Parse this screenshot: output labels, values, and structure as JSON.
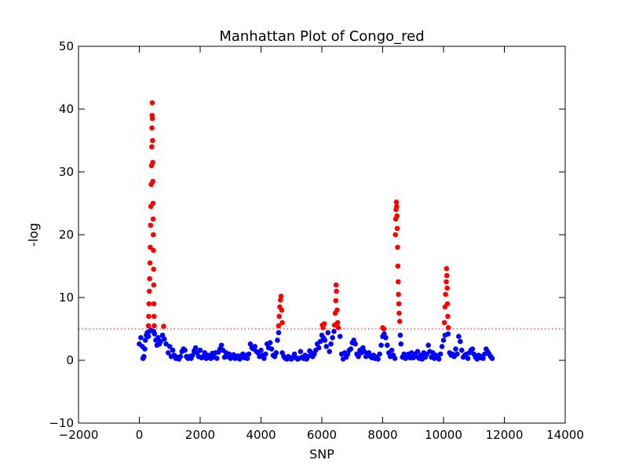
{
  "chart_data": {
    "type": "scatter",
    "title": "Manhattan Plot of Congo_red",
    "xlabel": "SNP",
    "ylabel": "-log",
    "xlim": [
      -2000,
      14000
    ],
    "ylim": [
      -10,
      50
    ],
    "xticks": [
      -2000,
      0,
      2000,
      4000,
      6000,
      8000,
      10000,
      12000,
      14000
    ],
    "yticks": [
      -10,
      0,
      10,
      20,
      30,
      40,
      50
    ],
    "xtick_labels": [
      "−2000",
      "0",
      "2000",
      "4000",
      "6000",
      "8000",
      "10000",
      "12000",
      "14000"
    ],
    "ytick_labels": [
      "−10",
      "0",
      "10",
      "20",
      "30",
      "40",
      "50"
    ],
    "threshold": 5,
    "colors": {
      "above_threshold": "#ff0000",
      "below_threshold": "#0000ff",
      "threshold_line": "#ff0000"
    },
    "series": [
      {
        "color": "#0000ff",
        "points": [
          [
            0,
            2.6
          ],
          [
            50,
            3.6
          ],
          [
            100,
            2.2
          ],
          [
            120,
            0.3
          ],
          [
            150,
            0.6
          ],
          [
            180,
            1.8
          ],
          [
            200,
            3.2
          ],
          [
            230,
            4.0
          ],
          [
            260,
            4.4
          ],
          [
            300,
            3.8
          ],
          [
            330,
            4.6
          ],
          [
            380,
            4.8
          ],
          [
            470,
            4.6
          ],
          [
            500,
            4.2
          ],
          [
            540,
            3.2
          ],
          [
            580,
            2.4
          ],
          [
            620,
            3.6
          ],
          [
            660,
            2.6
          ],
          [
            700,
            3.0
          ],
          [
            760,
            4.0
          ],
          [
            820,
            3.4
          ],
          [
            880,
            2.6
          ],
          [
            950,
            1.2
          ],
          [
            1000,
            2.2
          ],
          [
            1050,
            0.6
          ],
          [
            1100,
            1.6
          ],
          [
            1150,
            0.8
          ],
          [
            1200,
            0.3
          ],
          [
            1250,
            0.5
          ],
          [
            1300,
            0.2
          ],
          [
            1350,
            0.6
          ],
          [
            1400,
            1.4
          ],
          [
            1450,
            1.8
          ],
          [
            1500,
            1.6
          ],
          [
            1550,
            0.6
          ],
          [
            1600,
            0.3
          ],
          [
            1650,
            0.6
          ],
          [
            1700,
            0.3
          ],
          [
            1750,
            0.8
          ],
          [
            1800,
            1.5
          ],
          [
            1850,
            2.0
          ],
          [
            1900,
            1.2
          ],
          [
            1950,
            0.6
          ],
          [
            2000,
            1.6
          ],
          [
            2050,
            0.4
          ],
          [
            2100,
            0.6
          ],
          [
            2150,
            1.2
          ],
          [
            2200,
            0.3
          ],
          [
            2250,
            0.8
          ],
          [
            2300,
            0.5
          ],
          [
            2350,
            0.3
          ],
          [
            2400,
            1.1
          ],
          [
            2450,
            0.5
          ],
          [
            2500,
            1.2
          ],
          [
            2550,
            0.3
          ],
          [
            2600,
            1.3
          ],
          [
            2650,
            1.8
          ],
          [
            2700,
            2.4
          ],
          [
            2750,
            1.6
          ],
          [
            2800,
            0.5
          ],
          [
            2850,
            1.2
          ],
          [
            2900,
            0.6
          ],
          [
            2950,
            1.0
          ],
          [
            3000,
            0.3
          ],
          [
            3050,
            0.6
          ],
          [
            3100,
            0.9
          ],
          [
            3150,
            0.3
          ],
          [
            3200,
            0.5
          ],
          [
            3250,
            0.7
          ],
          [
            3300,
            0.2
          ],
          [
            3350,
            0.6
          ],
          [
            3400,
            1.0
          ],
          [
            3450,
            0.4
          ],
          [
            3500,
            0.8
          ],
          [
            3550,
            0.3
          ],
          [
            3600,
            1.0
          ],
          [
            3650,
            2.6
          ],
          [
            3700,
            2.0
          ],
          [
            3750,
            1.8
          ],
          [
            3800,
            2.2
          ],
          [
            3850,
            1.4
          ],
          [
            3900,
            1.2
          ],
          [
            3950,
            0.6
          ],
          [
            4000,
            1.6
          ],
          [
            4050,
            0.8
          ],
          [
            4100,
            0.3
          ],
          [
            4150,
            1.0
          ],
          [
            4200,
            2.6
          ],
          [
            4250,
            2.0
          ],
          [
            4300,
            2.8
          ],
          [
            4350,
            1.8
          ],
          [
            4400,
            0.8
          ],
          [
            4450,
            0.6
          ],
          [
            4500,
            1.2
          ],
          [
            4540,
            3.2
          ],
          [
            4580,
            4.4
          ],
          [
            4700,
            1.2
          ],
          [
            4750,
            0.6
          ],
          [
            4800,
            0.3
          ],
          [
            4850,
            0.2
          ],
          [
            4900,
            0.6
          ],
          [
            4950,
            0.3
          ],
          [
            5000,
            0.2
          ],
          [
            5050,
            0.5
          ],
          [
            5100,
            1.0
          ],
          [
            5150,
            0.4
          ],
          [
            5200,
            0.2
          ],
          [
            5250,
            0.3
          ],
          [
            5300,
            1.4
          ],
          [
            5350,
            0.5
          ],
          [
            5400,
            0.3
          ],
          [
            5450,
            0.8
          ],
          [
            5500,
            0.2
          ],
          [
            5550,
            0.6
          ],
          [
            5600,
            1.5
          ],
          [
            5650,
            1.2
          ],
          [
            5700,
            0.6
          ],
          [
            5750,
            1.0
          ],
          [
            5800,
            1.6
          ],
          [
            5850,
            2.6
          ],
          [
            5900,
            2.0
          ],
          [
            5950,
            3.0
          ],
          [
            6000,
            4.0
          ],
          [
            6050,
            3.6
          ],
          [
            6100,
            3.2
          ],
          [
            6150,
            2.2
          ],
          [
            6200,
            4.4
          ],
          [
            6250,
            1.4
          ],
          [
            6300,
            2.6
          ],
          [
            6350,
            3.6
          ],
          [
            6400,
            4.6
          ],
          [
            6600,
            3.8
          ],
          [
            6650,
            1.0
          ],
          [
            6700,
            0.2
          ],
          [
            6750,
            1.2
          ],
          [
            6800,
            0.5
          ],
          [
            6850,
            1.0
          ],
          [
            6900,
            1.6
          ],
          [
            6950,
            1.8
          ],
          [
            7000,
            2.8
          ],
          [
            7050,
            3.2
          ],
          [
            7100,
            2.6
          ],
          [
            7150,
            1.0
          ],
          [
            7200,
            0.6
          ],
          [
            7250,
            1.6
          ],
          [
            7300,
            1.2
          ],
          [
            7350,
            2.0
          ],
          [
            7400,
            1.4
          ],
          [
            7450,
            0.6
          ],
          [
            7500,
            0.8
          ],
          [
            7550,
            1.2
          ],
          [
            7600,
            0.6
          ],
          [
            7650,
            0.4
          ],
          [
            7700,
            0.8
          ],
          [
            7750,
            0.3
          ],
          [
            7800,
            0.5
          ],
          [
            7850,
            0.2
          ],
          [
            7900,
            1.0
          ],
          [
            7950,
            2.4
          ],
          [
            8000,
            3.8
          ],
          [
            8050,
            4.2
          ],
          [
            8100,
            3.6
          ],
          [
            8150,
            2.4
          ],
          [
            8200,
            1.2
          ],
          [
            8250,
            0.6
          ],
          [
            8300,
            1.6
          ],
          [
            8350,
            0.8
          ],
          [
            8400,
            0.3
          ],
          [
            8580,
            4.0
          ],
          [
            8600,
            2.6
          ],
          [
            8650,
            0.5
          ],
          [
            8700,
            1.0
          ],
          [
            8750,
            0.3
          ],
          [
            8800,
            0.8
          ],
          [
            8850,
            1.0
          ],
          [
            8900,
            0.4
          ],
          [
            8950,
            1.2
          ],
          [
            9000,
            0.4
          ],
          [
            9050,
            1.0
          ],
          [
            9100,
            0.6
          ],
          [
            9150,
            1.4
          ],
          [
            9200,
            0.3
          ],
          [
            9250,
            0.8
          ],
          [
            9300,
            0.2
          ],
          [
            9350,
            1.2
          ],
          [
            9400,
            0.5
          ],
          [
            9450,
            1.0
          ],
          [
            9500,
            2.4
          ],
          [
            9550,
            1.4
          ],
          [
            9600,
            0.5
          ],
          [
            9650,
            1.2
          ],
          [
            9700,
            0.3
          ],
          [
            9750,
            0.8
          ],
          [
            9800,
            0.6
          ],
          [
            9850,
            0.2
          ],
          [
            9900,
            1.0
          ],
          [
            9950,
            2.2
          ],
          [
            10000,
            3.2
          ],
          [
            10050,
            4.0
          ],
          [
            10150,
            4.2
          ],
          [
            10200,
            1.2
          ],
          [
            10250,
            0.8
          ],
          [
            10300,
            1.0
          ],
          [
            10350,
            0.6
          ],
          [
            10400,
            1.8
          ],
          [
            10450,
            1.0
          ],
          [
            10500,
            3.8
          ],
          [
            10550,
            3.0
          ],
          [
            10600,
            1.6
          ],
          [
            10650,
            0.5
          ],
          [
            10700,
            0.8
          ],
          [
            10750,
            1.0
          ],
          [
            10800,
            0.3
          ],
          [
            10850,
            1.2
          ],
          [
            10900,
            1.6
          ],
          [
            10950,
            1.8
          ],
          [
            11000,
            1.0
          ],
          [
            11050,
            0.5
          ],
          [
            11100,
            0.2
          ],
          [
            11150,
            0.8
          ],
          [
            11200,
            0.4
          ],
          [
            11250,
            0.6
          ],
          [
            11300,
            0.3
          ],
          [
            11350,
            1.0
          ],
          [
            11400,
            1.8
          ],
          [
            11450,
            1.4
          ],
          [
            11500,
            1.0
          ],
          [
            11550,
            0.6
          ],
          [
            11600,
            0.3
          ]
        ]
      },
      {
        "color": "#ff0000",
        "points": [
          [
            300,
            5.5
          ],
          [
            310,
            7.0
          ],
          [
            320,
            9.0
          ],
          [
            330,
            11.0
          ],
          [
            340,
            13.0
          ],
          [
            350,
            15.5
          ],
          [
            360,
            18.0
          ],
          [
            370,
            21.5
          ],
          [
            380,
            24.5
          ],
          [
            390,
            28.0
          ],
          [
            400,
            31.0
          ],
          [
            410,
            34.0
          ],
          [
            415,
            37.0
          ],
          [
            420,
            39.0
          ],
          [
            425,
            41.0
          ],
          [
            430,
            38.5
          ],
          [
            435,
            35.0
          ],
          [
            440,
            31.5
          ],
          [
            445,
            28.5
          ],
          [
            450,
            25.0
          ],
          [
            455,
            22.5
          ],
          [
            460,
            20.0
          ],
          [
            465,
            17.5
          ],
          [
            470,
            14.5
          ],
          [
            475,
            12.0
          ],
          [
            480,
            9.0
          ],
          [
            485,
            7.0
          ],
          [
            490,
            5.5
          ],
          [
            800,
            5.4
          ],
          [
            4580,
            5.5
          ],
          [
            4600,
            7.0
          ],
          [
            4620,
            8.5
          ],
          [
            4640,
            9.6
          ],
          [
            4660,
            10.2
          ],
          [
            4680,
            8.0
          ],
          [
            4700,
            6.0
          ],
          [
            6020,
            5.6
          ],
          [
            6040,
            5.2
          ],
          [
            6080,
            5.8
          ],
          [
            6420,
            5.6
          ],
          [
            6440,
            7.5
          ],
          [
            6460,
            9.5
          ],
          [
            6470,
            12.0
          ],
          [
            6480,
            11.0
          ],
          [
            6500,
            8.0
          ],
          [
            6520,
            6.0
          ],
          [
            6540,
            5.2
          ],
          [
            8000,
            5.2
          ],
          [
            8040,
            5.0
          ],
          [
            8420,
            20.0
          ],
          [
            8430,
            22.5
          ],
          [
            8440,
            24.0
          ],
          [
            8450,
            25.2
          ],
          [
            8460,
            24.5
          ],
          [
            8470,
            23.0
          ],
          [
            8480,
            21.0
          ],
          [
            8490,
            18.0
          ],
          [
            8500,
            15.0
          ],
          [
            8510,
            12.5
          ],
          [
            8520,
            10.5
          ],
          [
            8530,
            9.0
          ],
          [
            8540,
            7.5
          ],
          [
            8560,
            6.2
          ],
          [
            10030,
            6.0
          ],
          [
            10050,
            8.5
          ],
          [
            10070,
            10.5
          ],
          [
            10090,
            12.5
          ],
          [
            10100,
            14.6
          ],
          [
            10110,
            13.5
          ],
          [
            10120,
            11.5
          ],
          [
            10130,
            9.0
          ],
          [
            10140,
            7.0
          ],
          [
            10160,
            5.2
          ]
        ]
      }
    ]
  }
}
